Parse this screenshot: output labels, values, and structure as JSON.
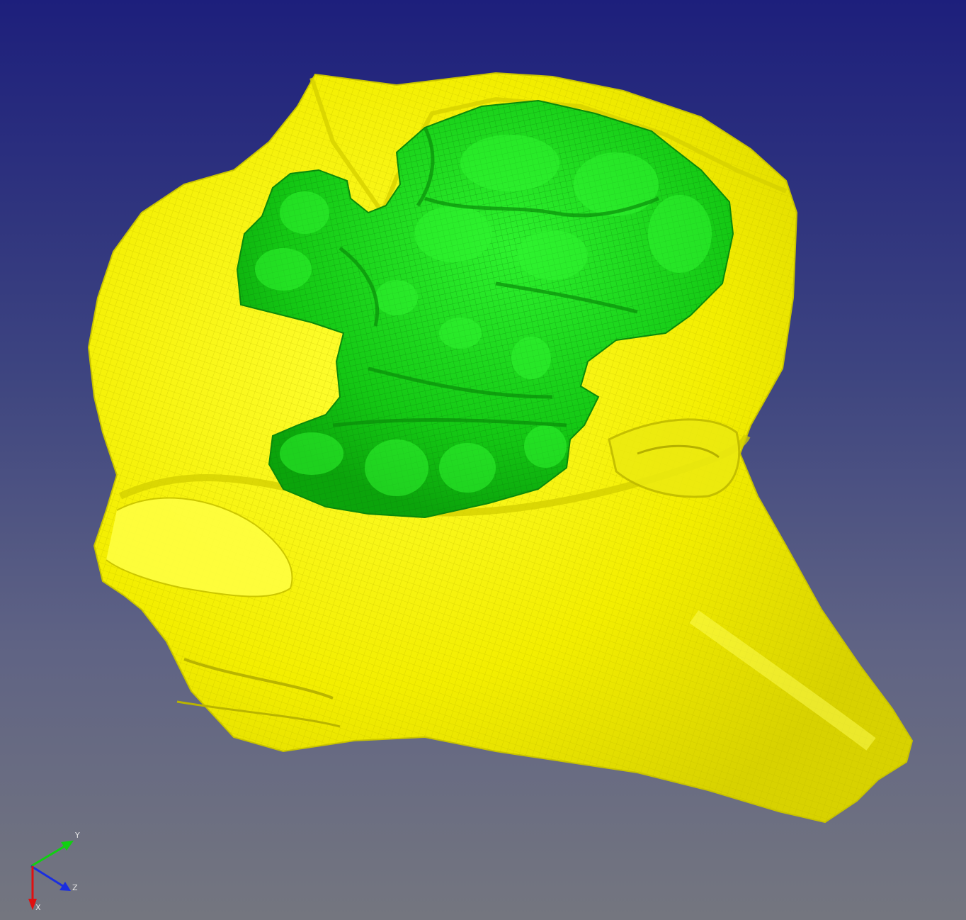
{
  "viewer": {
    "background_top": "#1d1f7c",
    "background_bottom": "#74767f"
  },
  "scene": {
    "objects": [
      {
        "name": "head-mesh",
        "color": "#f5f000",
        "wire_color": "#c9c400"
      },
      {
        "name": "brain-mesh",
        "color": "#16d416",
        "wire_color": "#0a8a0a"
      }
    ]
  },
  "axis_triad": {
    "x": {
      "label": "X",
      "color": "#e01010"
    },
    "y": {
      "label": "Y",
      "color": "#10d010"
    },
    "z": {
      "label": "Z",
      "color": "#1a2ee0"
    }
  }
}
